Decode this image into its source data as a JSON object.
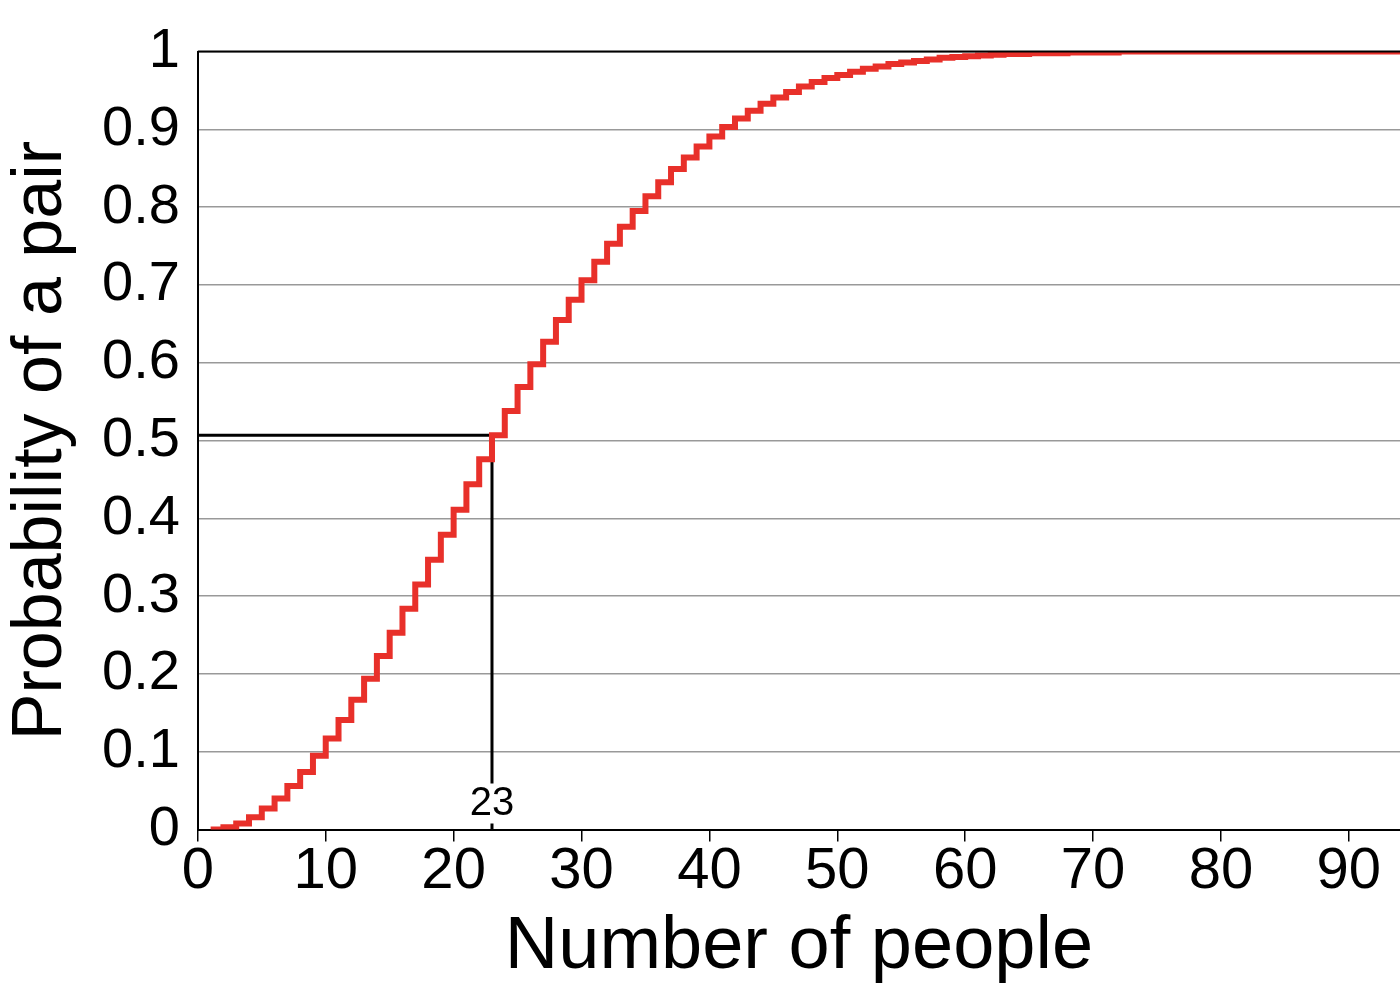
{
  "chart_data": {
    "type": "step",
    "xlabel": "Number of people",
    "ylabel": "Probability of a pair",
    "xlim": [
      0,
      94
    ],
    "xticks": [
      0,
      10,
      20,
      30,
      40,
      50,
      60,
      70,
      80,
      90
    ],
    "ylim": [
      0,
      1
    ],
    "yticks": [
      0,
      0.1,
      0.2,
      0.3,
      0.4,
      0.5,
      0.6,
      0.7,
      0.8,
      0.9,
      1
    ],
    "grid": "y",
    "legend": false,
    "marker": "none",
    "line_style": "solid",
    "annotations": [
      {
        "text": "23",
        "x": 23,
        "y": 0
      }
    ],
    "series": [
      {
        "type": "step",
        "color": "#e8302a",
        "x": [
          1,
          2,
          3,
          4,
          5,
          6,
          7,
          8,
          9,
          10,
          11,
          12,
          13,
          14,
          15,
          16,
          17,
          18,
          19,
          20,
          21,
          22,
          23,
          24,
          25,
          26,
          27,
          28,
          29,
          30,
          31,
          32,
          33,
          34,
          35,
          36,
          37,
          38,
          39,
          40,
          41,
          42,
          43,
          44,
          45,
          46,
          47,
          48,
          49,
          50,
          51,
          52,
          53,
          54,
          55,
          56,
          57,
          58,
          59,
          60,
          61,
          62,
          63,
          64,
          65,
          66,
          67,
          68,
          69,
          70,
          71,
          72,
          73,
          74,
          75,
          76,
          77,
          78,
          79,
          80,
          81,
          82,
          83,
          84,
          85,
          86,
          87,
          88,
          89,
          90,
          91,
          92,
          93,
          94
        ],
        "values": [
          0,
          0.003,
          0.008,
          0.016,
          0.027,
          0.04,
          0.056,
          0.074,
          0.095,
          0.117,
          0.141,
          0.167,
          0.194,
          0.223,
          0.253,
          0.284,
          0.315,
          0.347,
          0.379,
          0.411,
          0.444,
          0.476,
          0.507,
          0.538,
          0.569,
          0.598,
          0.627,
          0.655,
          0.681,
          0.706,
          0.73,
          0.753,
          0.775,
          0.795,
          0.814,
          0.832,
          0.849,
          0.864,
          0.878,
          0.891,
          0.903,
          0.914,
          0.924,
          0.933,
          0.941,
          0.948,
          0.955,
          0.961,
          0.966,
          0.97,
          0.974,
          0.978,
          0.981,
          0.984,
          0.986,
          0.988,
          0.99,
          0.992,
          0.993,
          0.994,
          0.995,
          0.996,
          0.997,
          0.997,
          0.998,
          0.998,
          0.998,
          0.999,
          0.999,
          0.999,
          0.999,
          1,
          1,
          1,
          1,
          1,
          1,
          1,
          1,
          1,
          1,
          1,
          1,
          1,
          1,
          1,
          1,
          1,
          1,
          1,
          1,
          1,
          1,
          1
        ]
      },
      {
        "type": "line",
        "color": "#000000",
        "x": [
          0,
          23,
          23
        ],
        "values": [
          0.507,
          0.507,
          0
        ]
      }
    ]
  }
}
